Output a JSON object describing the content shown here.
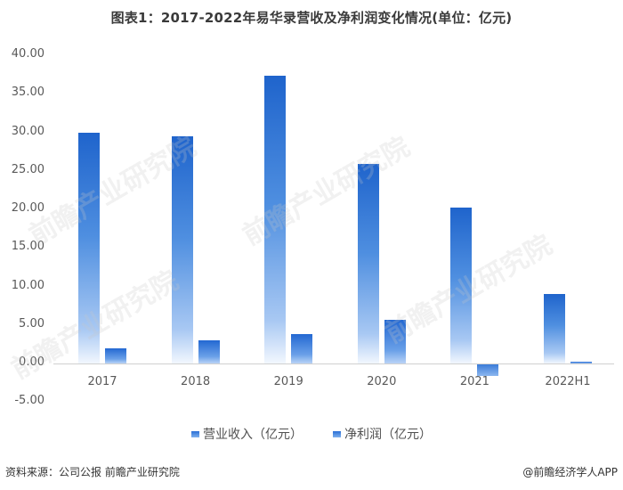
{
  "title": "图表1：2017-2022年易华录营收及净利润变化情况(单位：亿元)",
  "chart_data": {
    "type": "bar",
    "title": "图表1：2017-2022年易华录营收及净利润变化情况(单位：亿元)",
    "xlabel": "",
    "ylabel": "",
    "categories": [
      "2017",
      "2018",
      "2019",
      "2020",
      "2021",
      "2022H1"
    ],
    "series": [
      {
        "name": "营业收入（亿元）",
        "values": [
          30.0,
          29.5,
          37.3,
          25.9,
          20.2,
          9.0
        ],
        "color": "#1f64cc"
      },
      {
        "name": "净利润（亿元）",
        "values": [
          2.0,
          3.0,
          3.8,
          5.7,
          -1.5,
          0.2
        ],
        "color": "#2a6fd6"
      }
    ],
    "ylim": [
      -5,
      40
    ],
    "yticks": [
      "40.00",
      "35.00",
      "30.00",
      "25.00",
      "20.00",
      "15.00",
      "10.00",
      "5.00",
      "0.00",
      "-5.00"
    ],
    "grid": false,
    "legend_position": "bottom"
  },
  "legend": {
    "items": [
      {
        "label": "营业收入（亿元）"
      },
      {
        "label": "净利润（亿元）"
      }
    ]
  },
  "footer": {
    "source": "资料来源：公司公报 前瞻产业研究院",
    "credit": "@前瞻经济学人APP"
  },
  "watermark": "前瞻产业研究院"
}
